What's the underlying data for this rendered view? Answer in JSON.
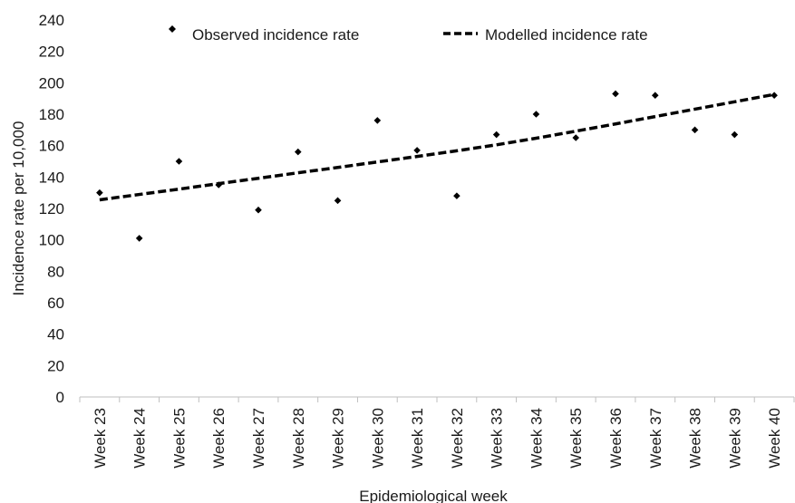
{
  "chart_data": {
    "type": "scatter",
    "xlabel": "Epidemiological week",
    "ylabel": "Incidence rate per 10,000",
    "ylim": [
      0,
      240
    ],
    "y_ticks": [
      0,
      20,
      40,
      60,
      80,
      100,
      120,
      140,
      160,
      180,
      200,
      220,
      240
    ],
    "grid": false,
    "legend_position": "top",
    "categories": [
      "Week 23",
      "Week 24",
      "Week 25",
      "Week 26",
      "Week 27",
      "Week 28",
      "Week 29",
      "Week 30",
      "Week 31",
      "Week 32",
      "Week 33",
      "Week 34",
      "Week 35",
      "Week 36",
      "Week 37",
      "Week 38",
      "Week 39",
      "Week 40"
    ],
    "series": [
      {
        "name": "Observed incidence rate",
        "kind": "scatter",
        "marker": "diamond",
        "color": "#000000",
        "values": [
          130,
          101,
          150,
          135,
          119,
          156,
          125,
          176,
          157,
          128,
          167,
          180,
          165,
          193,
          192,
          170,
          167,
          192
        ]
      },
      {
        "name": "Modelled incidence rate",
        "kind": "line",
        "style": "dashed",
        "color": "#000000",
        "values": [
          125.5,
          128.9,
          132.3,
          135.8,
          139.2,
          142.7,
          146.1,
          149.6,
          153.1,
          156.7,
          160.5,
          164.7,
          169.2,
          173.8,
          178.5,
          183.2,
          187.9,
          192.6
        ]
      }
    ]
  }
}
